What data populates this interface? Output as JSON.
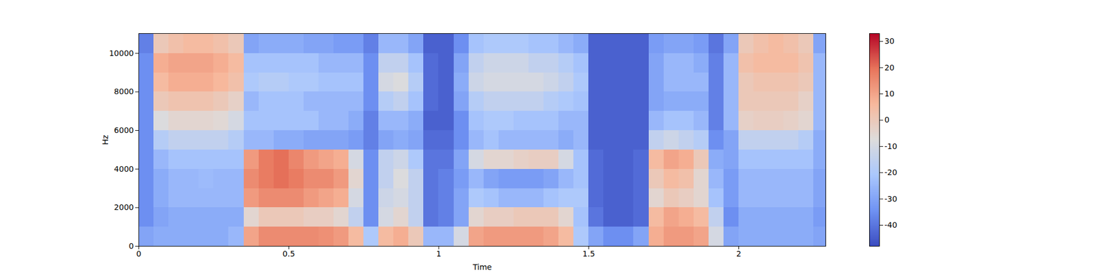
{
  "chart_data": {
    "type": "spectrogram",
    "x_label": "Time",
    "y_label": "Hz",
    "xlim": [
      0,
      2.29
    ],
    "xticks": [
      0,
      0.5,
      1,
      1.5,
      2
    ],
    "ylim": [
      0,
      11025
    ],
    "yticks": [
      0,
      2000,
      4000,
      6000,
      8000,
      10000
    ],
    "colorbar": {
      "range": [
        -48,
        33
      ],
      "ticks": [
        -40,
        -30,
        -20,
        -10,
        0,
        10,
        20,
        30
      ]
    },
    "time": [
      0.0,
      0.05,
      0.1,
      0.15,
      0.2,
      0.25,
      0.3,
      0.35,
      0.4,
      0.45,
      0.5,
      0.55,
      0.6,
      0.65,
      0.7,
      0.75,
      0.8,
      0.85,
      0.9,
      0.95,
      1.0,
      1.05,
      1.1,
      1.15,
      1.2,
      1.25,
      1.3,
      1.35,
      1.4,
      1.45,
      1.5,
      1.55,
      1.6,
      1.65,
      1.7,
      1.75,
      1.8,
      1.85,
      1.9,
      1.95,
      2.0,
      2.05,
      2.1,
      2.15,
      2.2,
      2.25
    ],
    "freq": [
      0,
      1000,
      2000,
      3000,
      4000,
      5000,
      6000,
      7000,
      8000,
      9000,
      10000
    ],
    "values": [
      [
        -30,
        -35,
        -35,
        -35,
        -35,
        -35,
        -35,
        -35,
        -35,
        -35,
        -38
      ],
      [
        -28,
        -30,
        -28,
        -28,
        -25,
        -18,
        -8,
        0,
        5,
        8,
        0
      ],
      [
        -28,
        -28,
        -25,
        -25,
        -22,
        -15,
        -5,
        2,
        8,
        10,
        3
      ],
      [
        -28,
        -28,
        -25,
        -25,
        -22,
        -15,
        -5,
        2,
        8,
        10,
        5
      ],
      [
        -28,
        -28,
        -25,
        -24,
        -22,
        -15,
        -5,
        2,
        8,
        10,
        5
      ],
      [
        -28,
        -28,
        -25,
        -25,
        -22,
        -15,
        -6,
        0,
        6,
        8,
        3
      ],
      [
        -25,
        -28,
        -25,
        -25,
        -22,
        -18,
        -10,
        -3,
        3,
        5,
        0
      ],
      [
        10,
        -5,
        12,
        15,
        12,
        -25,
        -22,
        -25,
        -20,
        -22,
        -30
      ],
      [
        15,
        0,
        15,
        18,
        18,
        -25,
        -22,
        -22,
        -18,
        -22,
        -28
      ],
      [
        15,
        0,
        15,
        20,
        20,
        -28,
        -22,
        -22,
        -18,
        -22,
        -28
      ],
      [
        15,
        0,
        15,
        18,
        16,
        -28,
        -22,
        -22,
        -20,
        -22,
        -28
      ],
      [
        15,
        -2,
        12,
        15,
        12,
        -30,
        -22,
        -25,
        -20,
        -22,
        -30
      ],
      [
        14,
        -2,
        10,
        15,
        10,
        -30,
        -25,
        -25,
        -22,
        -25,
        -30
      ],
      [
        12,
        -5,
        8,
        12,
        8,
        -30,
        -25,
        -25,
        -22,
        -25,
        -32
      ],
      [
        5,
        -15,
        -10,
        -5,
        -10,
        -32,
        -28,
        -25,
        -22,
        -25,
        -32
      ],
      [
        -20,
        -35,
        -35,
        -35,
        -35,
        -38,
        -38,
        -35,
        -35,
        -35,
        -38
      ],
      [
        5,
        -10,
        -12,
        -15,
        -15,
        -30,
        -25,
        -18,
        -10,
        -15,
        -25
      ],
      [
        8,
        -5,
        -10,
        -8,
        -12,
        -28,
        -25,
        -15,
        -8,
        -15,
        -25
      ],
      [
        0,
        -15,
        -15,
        -15,
        -20,
        -30,
        -28,
        -22,
        -18,
        -22,
        -30
      ],
      [
        -25,
        -40,
        -40,
        -40,
        -40,
        -42,
        -44,
        -42,
        -42,
        -42,
        -44
      ],
      [
        -25,
        -38,
        -38,
        -38,
        -40,
        -42,
        -44,
        -44,
        -44,
        -44,
        -44
      ],
      [
        -10,
        -30,
        -30,
        -32,
        -30,
        -35,
        -35,
        -30,
        -28,
        -30,
        -35
      ],
      [
        10,
        -5,
        -20,
        -25,
        -10,
        -25,
        -22,
        -18,
        -12,
        -15,
        -22
      ],
      [
        12,
        -2,
        -22,
        -30,
        -5,
        -22,
        -20,
        -15,
        -10,
        -12,
        -20
      ],
      [
        12,
        -2,
        -25,
        -32,
        -5,
        -25,
        -20,
        -15,
        -10,
        -12,
        -20
      ],
      [
        12,
        0,
        -25,
        -32,
        -3,
        -25,
        -22,
        -15,
        -10,
        -12,
        -20
      ],
      [
        12,
        0,
        -25,
        -32,
        -2,
        -25,
        -22,
        -15,
        -10,
        -15,
        -22
      ],
      [
        10,
        0,
        -22,
        -30,
        -2,
        -25,
        -22,
        -18,
        -12,
        -15,
        -22
      ],
      [
        5,
        -5,
        -20,
        -25,
        -10,
        -28,
        -25,
        -20,
        -15,
        -18,
        -25
      ],
      [
        -20,
        -22,
        -20,
        -22,
        -22,
        -25,
        -25,
        -22,
        -20,
        -22,
        -28
      ],
      [
        -30,
        -40,
        -42,
        -42,
        -42,
        -44,
        -44,
        -44,
        -44,
        -44,
        -44
      ],
      [
        -35,
        -44,
        -44,
        -44,
        -44,
        -44,
        -44,
        -44,
        -44,
        -44,
        -44
      ],
      [
        -35,
        -44,
        -44,
        -44,
        -44,
        -44,
        -44,
        -44,
        -44,
        -44,
        -44
      ],
      [
        -30,
        -42,
        -42,
        -42,
        -42,
        -44,
        -44,
        -44,
        -44,
        -44,
        -44
      ],
      [
        8,
        5,
        -5,
        0,
        5,
        -15,
        -25,
        -30,
        -30,
        -30,
        -32
      ],
      [
        12,
        10,
        0,
        5,
        10,
        -12,
        -22,
        -28,
        -25,
        -25,
        -30
      ],
      [
        12,
        8,
        -2,
        3,
        8,
        -15,
        -22,
        -28,
        -25,
        -25,
        -30
      ],
      [
        10,
        5,
        -5,
        -5,
        0,
        -18,
        -25,
        -28,
        -25,
        -28,
        -32
      ],
      [
        -10,
        -15,
        -22,
        -25,
        -28,
        -35,
        -38,
        -38,
        -38,
        -38,
        -40
      ],
      [
        -30,
        -35,
        -32,
        -32,
        -30,
        -30,
        -25,
        -25,
        -25,
        -25,
        -30
      ],
      [
        -28,
        -28,
        -25,
        -25,
        -22,
        -15,
        -3,
        0,
        0,
        3,
        0
      ],
      [
        -28,
        -28,
        -25,
        -25,
        -22,
        -15,
        -2,
        0,
        2,
        5,
        3
      ],
      [
        -28,
        -28,
        -25,
        -25,
        -22,
        -15,
        -2,
        0,
        2,
        5,
        5
      ],
      [
        -28,
        -28,
        -25,
        -25,
        -22,
        -15,
        -3,
        0,
        2,
        5,
        3
      ],
      [
        -28,
        -28,
        -25,
        -25,
        -22,
        -18,
        -5,
        -3,
        0,
        2,
        0
      ],
      [
        -30,
        -32,
        -30,
        -30,
        -28,
        -28,
        -25,
        -25,
        -25,
        -25,
        -30
      ]
    ]
  }
}
